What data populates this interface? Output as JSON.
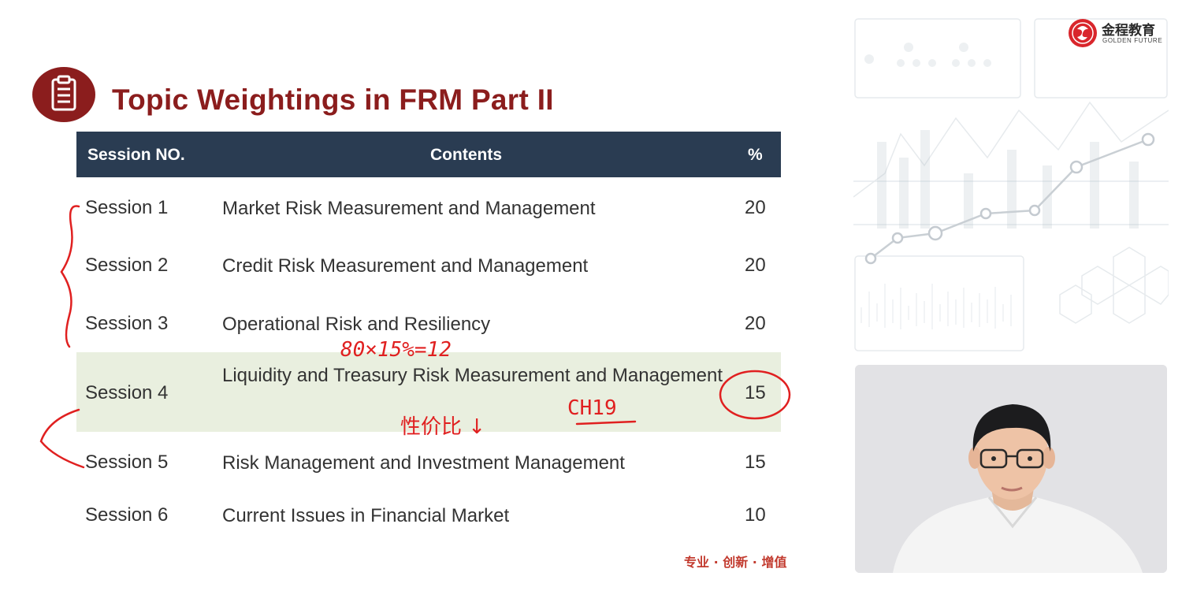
{
  "slide": {
    "title": "Topic Weightings in FRM Part II",
    "slogan": "专业 · 创新 · 增值"
  },
  "table": {
    "headers": {
      "session": "Session NO.",
      "contents": "Contents",
      "percent": "%"
    },
    "rows": [
      {
        "session": "Session 1",
        "contents": "Market Risk Measurement and Management",
        "percent": "20"
      },
      {
        "session": "Session 2",
        "contents": "Credit Risk Measurement and Management",
        "percent": "20"
      },
      {
        "session": "Session 3",
        "contents": "Operational Risk and Resiliency",
        "percent": "20"
      },
      {
        "session": "Session 4",
        "contents": "Liquidity and Treasury Risk Measurement and Management",
        "percent": "15"
      },
      {
        "session": "Session 5",
        "contents": "Risk Management and Investment Management",
        "percent": "15"
      },
      {
        "session": "Session 6",
        "contents": "Current Issues in Financial Market",
        "percent": "10"
      }
    ]
  },
  "logo": {
    "name": "金程教育",
    "subtitle": "GOLDEN FUTURE"
  },
  "annotations": {
    "formula": "80×15%=12",
    "note": "性价比 ↓",
    "chapter": "CH19"
  },
  "colors": {
    "title": "#8b1d1d",
    "header_bg": "#2a3c52",
    "highlight_row": "#e9efdf",
    "ink": "#e02020",
    "slogan": "#c23a2e"
  },
  "icons": {
    "title": "clipboard-icon"
  }
}
